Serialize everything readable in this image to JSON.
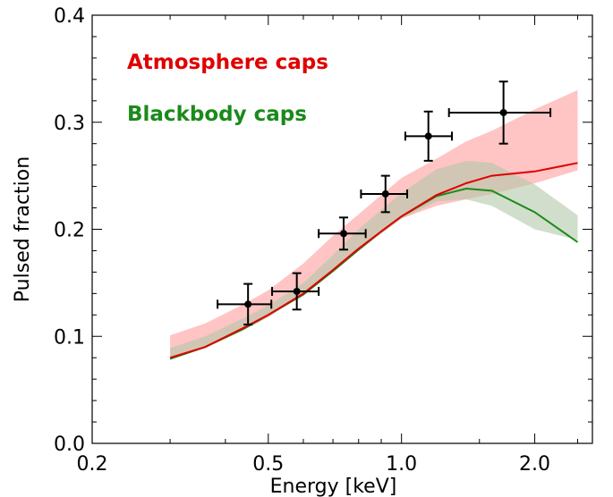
{
  "chart_data": {
    "type": "line",
    "title": "",
    "xlabel": "Energy  [keV]",
    "ylabel": "Pulsed fraction",
    "xscale": "log",
    "xlim": [
      0.2,
      2.7
    ],
    "ylim": [
      0.0,
      0.4
    ],
    "x_ticks": [
      {
        "value": 0.2,
        "label": "0.2"
      },
      {
        "value": 0.5,
        "label": "0.5"
      },
      {
        "value": 1.0,
        "label": "1.0"
      },
      {
        "value": 2.0,
        "label": "2.0"
      }
    ],
    "y_ticks": [
      {
        "value": 0.0,
        "label": "0.0"
      },
      {
        "value": 0.1,
        "label": "0.1"
      },
      {
        "value": 0.2,
        "label": "0.2"
      },
      {
        "value": 0.3,
        "label": "0.3"
      },
      {
        "value": 0.4,
        "label": "0.4"
      }
    ],
    "grid": false,
    "legend_position": "top-left",
    "series": [
      {
        "name": "Atmosphere caps",
        "color": "#e00000",
        "band_color": "#ffb0b0",
        "x": [
          0.3,
          0.36,
          0.44,
          0.5,
          0.6,
          0.7,
          0.8,
          0.9,
          1.0,
          1.2,
          1.4,
          1.6,
          2.0,
          2.5
        ],
        "y": [
          0.08,
          0.09,
          0.108,
          0.12,
          0.14,
          0.162,
          0.182,
          0.198,
          0.212,
          0.232,
          0.243,
          0.25,
          0.254,
          0.262
        ],
        "y_upper": [
          0.101,
          0.112,
          0.13,
          0.143,
          0.168,
          0.194,
          0.214,
          0.232,
          0.248,
          0.266,
          0.282,
          0.292,
          0.312,
          0.33
        ],
        "y_lower": [
          0.079,
          0.089,
          0.106,
          0.118,
          0.139,
          0.161,
          0.18,
          0.196,
          0.21,
          0.222,
          0.228,
          0.233,
          0.243,
          0.255
        ]
      },
      {
        "name": "Blackbody caps",
        "color": "#1a8a1a",
        "band_color": "#b3c8a8",
        "x": [
          0.3,
          0.36,
          0.44,
          0.5,
          0.6,
          0.7,
          0.8,
          0.9,
          1.0,
          1.2,
          1.4,
          1.6,
          2.0,
          2.5
        ],
        "y": [
          0.079,
          0.09,
          0.107,
          0.12,
          0.139,
          0.161,
          0.181,
          0.198,
          0.212,
          0.231,
          0.238,
          0.236,
          0.216,
          0.188
        ],
        "y_upper": [
          0.089,
          0.1,
          0.117,
          0.129,
          0.15,
          0.176,
          0.2,
          0.218,
          0.234,
          0.256,
          0.264,
          0.262,
          0.242,
          0.213
        ],
        "y_lower": [
          0.079,
          0.089,
          0.106,
          0.118,
          0.139,
          0.16,
          0.18,
          0.196,
          0.21,
          0.226,
          0.228,
          0.222,
          0.2,
          0.19
        ]
      }
    ],
    "data_points": {
      "color": "#000000",
      "points": [
        {
          "x": 0.45,
          "y": 0.13,
          "xerr_low": 0.066,
          "xerr_high": 0.058,
          "yerr_low": 0.019,
          "yerr_high": 0.019
        },
        {
          "x": 0.58,
          "y": 0.142,
          "xerr_low": 0.07,
          "xerr_high": 0.07,
          "yerr_low": 0.017,
          "yerr_high": 0.017
        },
        {
          "x": 0.74,
          "y": 0.196,
          "xerr_low": 0.09,
          "xerr_high": 0.09,
          "yerr_low": 0.015,
          "yerr_high": 0.015
        },
        {
          "x": 0.92,
          "y": 0.233,
          "xerr_low": 0.11,
          "xerr_high": 0.11,
          "yerr_low": 0.017,
          "yerr_high": 0.017
        },
        {
          "x": 1.15,
          "y": 0.287,
          "xerr_low": 0.13,
          "xerr_high": 0.15,
          "yerr_low": 0.023,
          "yerr_high": 0.023
        },
        {
          "x": 1.7,
          "y": 0.309,
          "xerr_low": 0.42,
          "xerr_high": 0.47,
          "yerr_low": 0.029,
          "yerr_high": 0.029
        }
      ]
    }
  }
}
